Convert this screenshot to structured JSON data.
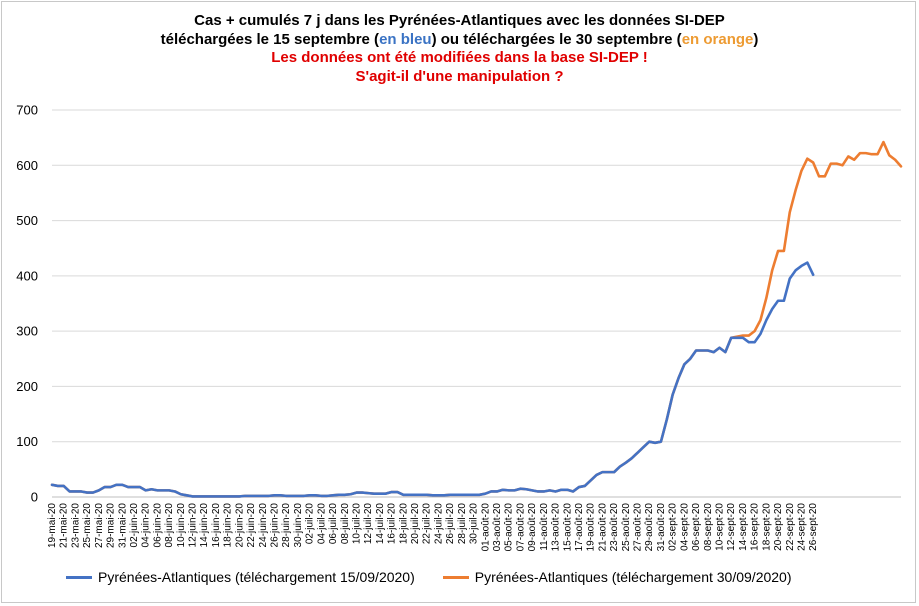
{
  "title": {
    "line1": "Cas + cumulés 7 j dans les Pyrénées-Atlantiques avec les données SI-DEP",
    "line2_a": "téléchargées le 15 septembre (",
    "line2_blue": "en bleu",
    "line2_b": ") ou téléchargées le 30 septembre (",
    "line2_orange": "en orange",
    "line2_c": ")",
    "line3": "Les données ont été modifiées dans la base SI-DEP !",
    "line4": "S'agit-il d'une manipulation ?"
  },
  "colors": {
    "blue": "#4472c4",
    "orange": "#ed7d31",
    "title_red": "#e00000",
    "grid": "#d9d9d9"
  },
  "chart_data": {
    "type": "line",
    "ylim": [
      0,
      700
    ],
    "yticks": [
      "0",
      "100",
      "200",
      "300",
      "400",
      "500",
      "600",
      "700"
    ],
    "grid": "horizontal",
    "legend_position": "bottom",
    "x_tick_labels": [
      "19-mai-20",
      "21-mai-20",
      "23-mai-20",
      "25-mai-20",
      "27-mai-20",
      "29-mai-20",
      "31-mai-20",
      "02-juin-20",
      "04-juin-20",
      "06-juin-20",
      "08-juin-20",
      "10-juin-20",
      "12-juin-20",
      "14-juin-20",
      "16-juin-20",
      "18-juin-20",
      "20-juin-20",
      "22-juin-20",
      "24-juin-20",
      "26-juin-20",
      "28-juin-20",
      "30-juin-20",
      "02-juil-20",
      "04-juil-20",
      "06-juil-20",
      "08-juil-20",
      "10-juil-20",
      "12-juil-20",
      "14-juil-20",
      "16-juil-20",
      "18-juil-20",
      "20-juil-20",
      "22-juil-20",
      "24-juil-20",
      "26-juil-20",
      "28-juil-20",
      "30-juil-20",
      "01-août-20",
      "03-août-20",
      "05-août-20",
      "07-août-20",
      "09-août-20",
      "11-août-20",
      "13-août-20",
      "15-août-20",
      "17-août-20",
      "19-août-20",
      "21-août-20",
      "23-août-20",
      "25-août-20",
      "27-août-20",
      "29-août-20",
      "31-août-20",
      "02-sept-20",
      "04-sept-20",
      "06-sept-20",
      "08-sept-20",
      "10-sept-20",
      "12-sept-20",
      "14-sept-20",
      "16-sept-20",
      "18-sept-20",
      "20-sept-20",
      "22-sept-20",
      "24-sept-20",
      "26-sept-20"
    ],
    "series": [
      {
        "name": "Pyrénées-Atlantiques (téléchargement 15/09/2020)",
        "color": "#4472c4",
        "values": [
          22,
          20,
          20,
          10,
          10,
          10,
          8,
          8,
          12,
          18,
          18,
          22,
          22,
          18,
          18,
          18,
          12,
          14,
          12,
          12,
          12,
          10,
          5,
          3,
          1,
          1,
          1,
          1,
          1,
          1,
          1,
          1,
          1,
          2,
          2,
          2,
          2,
          2,
          3,
          3,
          2,
          2,
          2,
          2,
          3,
          3,
          2,
          2,
          3,
          4,
          4,
          5,
          8,
          8,
          7,
          6,
          6,
          6,
          9,
          9,
          4,
          4,
          4,
          4,
          4,
          3,
          3,
          3,
          4,
          4,
          4,
          4,
          4,
          4,
          6,
          10,
          10,
          13,
          12,
          12,
          15,
          14,
          12,
          10,
          10,
          12,
          10,
          13,
          13,
          10,
          18,
          20,
          30,
          40,
          45,
          45,
          45,
          55,
          62,
          70,
          80,
          90,
          100,
          98,
          100,
          140,
          185,
          215,
          240,
          250,
          265,
          265,
          265,
          262,
          270,
          262,
          288,
          288,
          288,
          280,
          280,
          295,
          320,
          340,
          355,
          355,
          395,
          410,
          418,
          424,
          402
        ],
        "x_start": 0
      },
      {
        "name": "Pyrénées-Atlantiques (téléchargement 30/09/2020)",
        "color": "#ed7d31",
        "values": [
          22,
          20,
          20,
          10,
          10,
          10,
          8,
          8,
          12,
          18,
          18,
          22,
          22,
          18,
          18,
          18,
          12,
          14,
          12,
          12,
          12,
          10,
          5,
          3,
          1,
          1,
          1,
          1,
          1,
          1,
          1,
          1,
          1,
          2,
          2,
          2,
          2,
          2,
          3,
          3,
          2,
          2,
          2,
          2,
          3,
          3,
          2,
          2,
          3,
          4,
          4,
          5,
          8,
          8,
          7,
          6,
          6,
          6,
          9,
          9,
          4,
          4,
          4,
          4,
          4,
          3,
          3,
          3,
          4,
          4,
          4,
          4,
          4,
          4,
          6,
          10,
          10,
          13,
          12,
          12,
          15,
          14,
          12,
          10,
          10,
          12,
          10,
          13,
          13,
          10,
          18,
          20,
          30,
          40,
          45,
          45,
          45,
          55,
          62,
          70,
          80,
          90,
          100,
          98,
          100,
          140,
          185,
          215,
          240,
          250,
          265,
          265,
          265,
          262,
          270,
          262,
          288,
          290,
          292,
          292,
          300,
          320,
          360,
          410,
          445,
          445,
          515,
          555,
          590,
          612,
          605,
          580,
          580,
          603,
          603,
          600,
          616,
          610,
          622,
          622,
          620,
          620,
          642,
          618,
          610,
          598
        ],
        "x_start": 0
      }
    ]
  }
}
